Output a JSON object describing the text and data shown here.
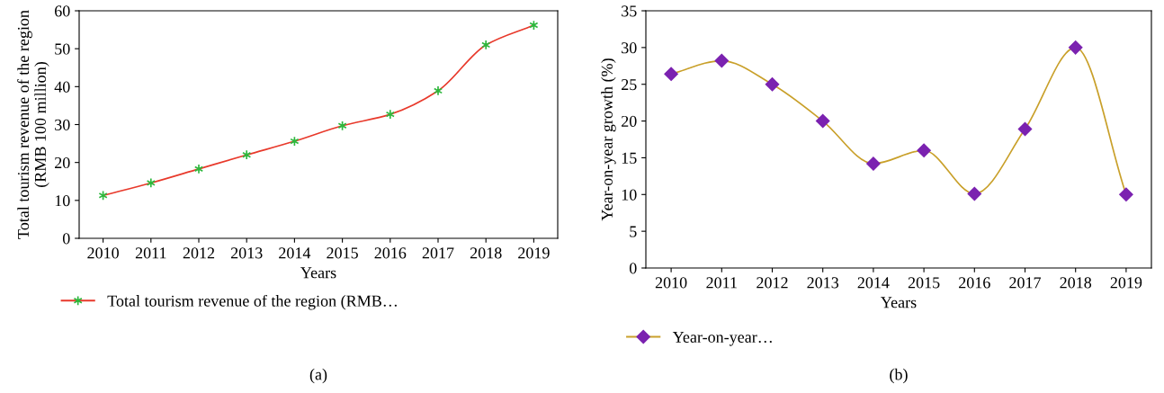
{
  "chart_data": [
    {
      "type": "line",
      "categories": [
        "2010",
        "2011",
        "2012",
        "2013",
        "2014",
        "2015",
        "2016",
        "2017",
        "2018",
        "2019"
      ],
      "xlabel": "Years",
      "ylabel": "Total tourism revenue of the region (RMB 100 million)",
      "ylim": [
        0,
        60
      ],
      "yticks": [
        0,
        10,
        20,
        30,
        40,
        50,
        60
      ],
      "marker": "cross",
      "legend": "bottom left",
      "grid": false,
      "annotations": [
        "(a)"
      ],
      "series": [
        {
          "name": "Total tourism revenue of the region (RMB…",
          "color": "#e8392b",
          "colors": [
            "#2db83d",
            "#2db83d",
            "#2db83d",
            "#2db83d",
            "#2db83d",
            "#2db83d",
            "#2db83d",
            "#2db83d",
            "#2db83d",
            "#2db83d"
          ],
          "values": [
            11.3,
            14.6,
            18.3,
            22.0,
            25.6,
            29.7,
            32.7,
            38.9,
            51.0,
            56.2
          ]
        }
      ]
    },
    {
      "type": "line",
      "categories": [
        "2010",
        "2011",
        "2012",
        "2013",
        "2014",
        "2015",
        "2016",
        "2017",
        "2018",
        "2019"
      ],
      "xlabel": "Years",
      "ylabel": "Year-on-year growth (%)",
      "ylim": [
        0,
        35
      ],
      "yticks": [
        0,
        5,
        10,
        15,
        20,
        25,
        30,
        35
      ],
      "marker": "diamond",
      "legend": "bottom left",
      "grid": false,
      "annotations": [
        "(b)"
      ],
      "series": [
        {
          "name": "Year-on-year…",
          "color": "#c9a02a",
          "colors": [
            "#7b22b0",
            "#7b22b0",
            "#7b22b0",
            "#7b22b0",
            "#7b22b0",
            "#7b22b0",
            "#7b22b0",
            "#7b22b0",
            "#7b22b0",
            "#7b22b0"
          ],
          "values": [
            26.4,
            28.2,
            25.0,
            20.0,
            14.2,
            16.0,
            10.1,
            18.9,
            30.0,
            10.0
          ]
        }
      ]
    }
  ]
}
